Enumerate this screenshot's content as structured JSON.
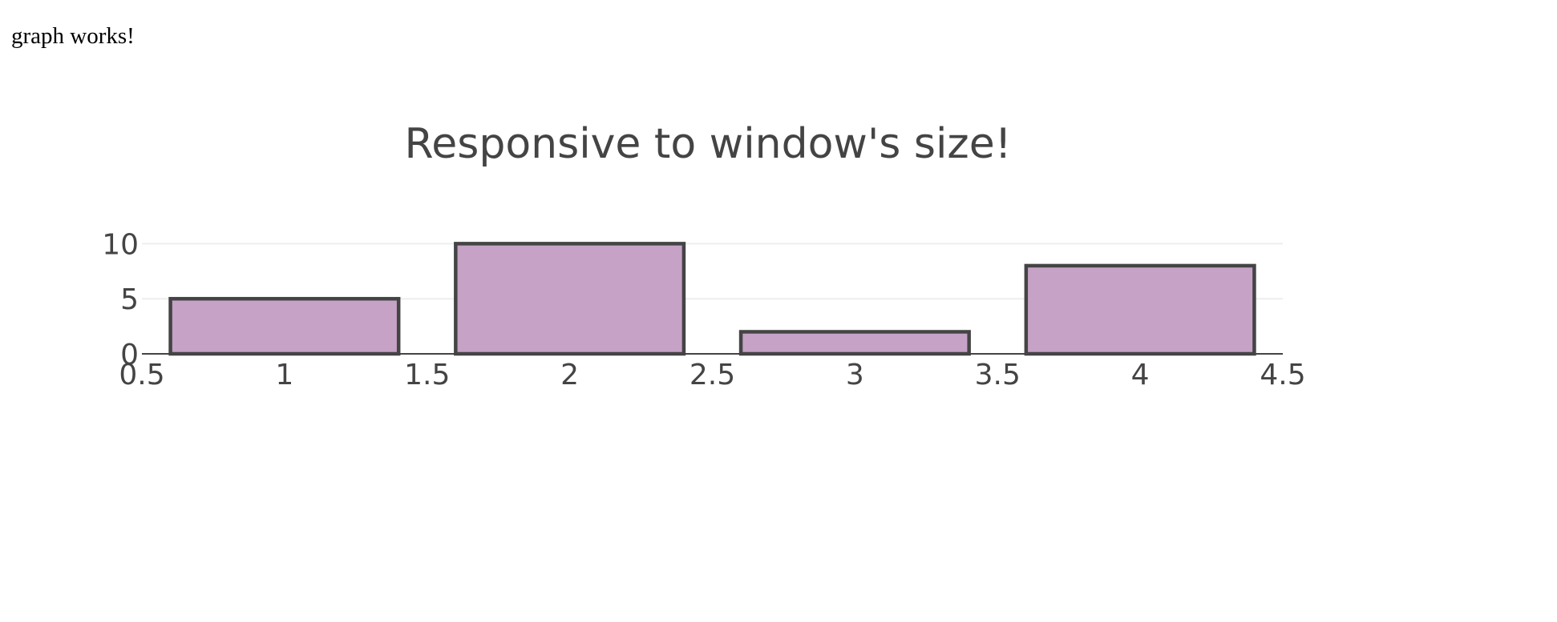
{
  "page": {
    "heading": "graph works!"
  },
  "colors": {
    "bar_fill": "#c6a2c6",
    "bar_stroke": "#444444",
    "text": "#444444",
    "grid": "#eeeeee",
    "axis_line": "#444444"
  },
  "chart_data": {
    "type": "bar",
    "title": "Responsive to window's size!",
    "xlabel": "",
    "ylabel": "",
    "x": [
      1,
      2,
      3,
      4
    ],
    "values": [
      5,
      10,
      2,
      8
    ],
    "xlim": [
      0.5,
      4.5
    ],
    "ylim": [
      0,
      10.9
    ],
    "xticks": [
      "0.5",
      "1",
      "1.5",
      "2",
      "2.5",
      "3",
      "3.5",
      "4",
      "4.5"
    ],
    "xtick_values": [
      0.5,
      1,
      1.5,
      2,
      2.5,
      3,
      3.5,
      4,
      4.5
    ],
    "yticks": [
      "0",
      "5",
      "10"
    ],
    "ytick_values": [
      0,
      5,
      10
    ],
    "bar_width": 0.8,
    "grid": true,
    "legend": "none"
  }
}
